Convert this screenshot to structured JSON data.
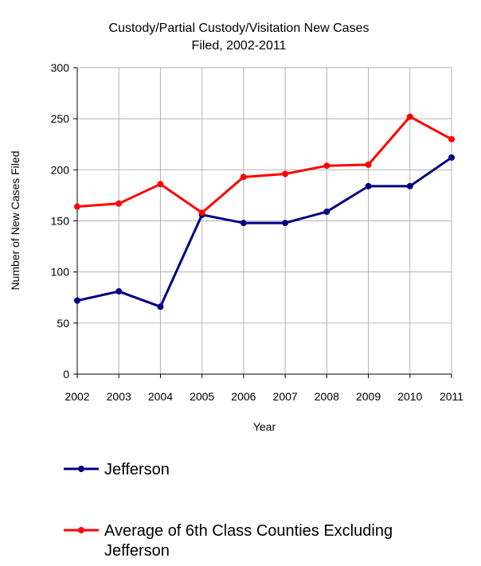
{
  "chart_data": {
    "type": "line",
    "title_lines": [
      "Custody/Partial Custody/Visitation New  Cases",
      "Filed, 2002-2011"
    ],
    "xlabel": "Year",
    "ylabel": "Number of New Cases Filed",
    "ylim": [
      0,
      300
    ],
    "yticks": [
      0,
      50,
      100,
      150,
      200,
      250,
      300
    ],
    "categories": [
      "2002",
      "2003",
      "2004",
      "2005",
      "2006",
      "2007",
      "2008",
      "2009",
      "2010",
      "2011"
    ],
    "grid": true,
    "legend_position": "bottom",
    "series": [
      {
        "name": "Jefferson",
        "color": "#000080",
        "values": [
          72,
          81,
          66,
          156,
          148,
          148,
          159,
          184,
          184,
          212
        ]
      },
      {
        "name_lines": [
          "Average of 6th Class Counties Excluding",
          "Jefferson"
        ],
        "color": "#ff0000",
        "values": [
          164,
          167,
          186,
          158,
          193,
          196,
          204,
          205,
          252,
          230
        ]
      }
    ]
  }
}
